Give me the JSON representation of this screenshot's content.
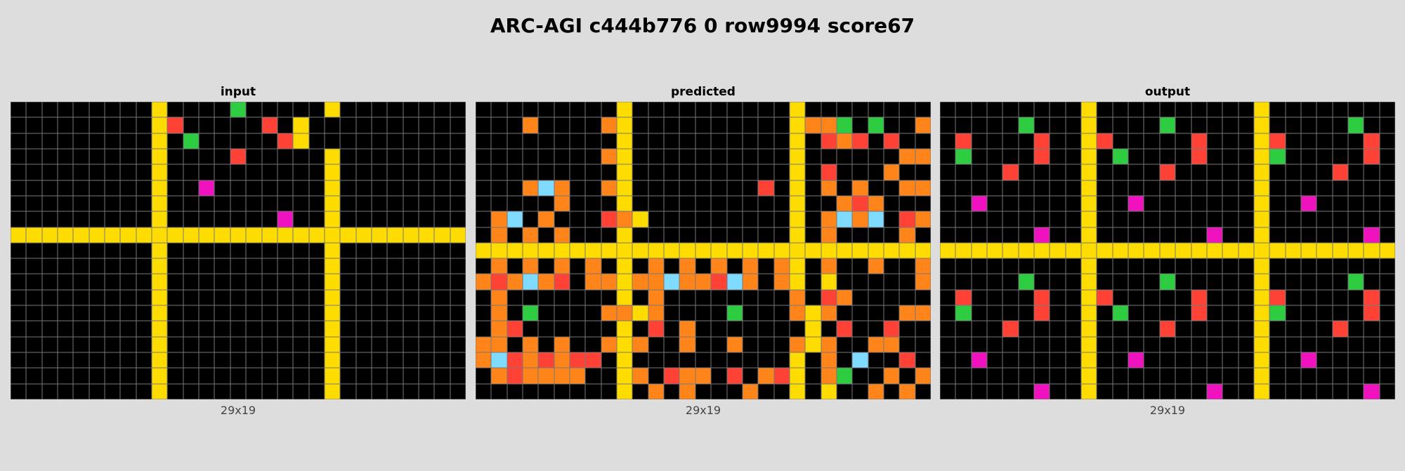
{
  "title": "ARC-AGI c444b776 0 row9994 score67",
  "palette": {
    "0": "#000000",
    "2": "#ff4136",
    "3": "#2ecc40",
    "4": "#ffdc00",
    "6": "#f012be",
    "7": "#ff851b",
    "8": "#7fdbff"
  },
  "panels": [
    {
      "name": "input",
      "label": "input",
      "dims": "29x19",
      "rows": [
        "00000000040000300000400000000",
        "00000000042000002040000000000",
        "00000000040300000240000000000",
        "00000000040000200000400000000",
        "00000000040000000000400000000",
        "00000000040060000000400000000",
        "00000000040000000000400000000",
        "00000000040000000600400000000",
        "44444444444444444444444444444",
        "00000000040000000000400000000",
        "00000000040000000000400000000",
        "00000000040000000000400000000",
        "00000000040000000000400000000",
        "00000000040000000000400000000",
        "00000000040000000000400000000",
        "00000000040000000000400000000",
        "00000000040000000000400000000",
        "00000000040000000000400000000",
        "00000000040000000000400000000"
      ]
    },
    {
      "name": "predicted",
      "label": "predicted",
      "dims": "29x19",
      "rows": [
        "00000000040000000000400000000",
        "00070000740000000000477303007",
        "00000000040000000000402720200",
        "00000000740000000000400000077",
        "00000000040000000000402000700",
        "00078700740000000020407070077",
        "00000700040000000000400727000",
        "07807000274000000000407878027",
        "07070700040000000000407000070",
        "44444444444444444444444444444",
        "07070707040707070707407007007",
        "72787207747787728707404000007",
        "07000000040700000000702700000",
        "07030000774700003000747000077",
        "07200000040207000000040200200",
        "77070700747007007000747007700",
        "78272722040000000000407080020",
        "07277770047027702072407300707",
        "00000000040707000700404007070"
      ]
    },
    {
      "name": "output",
      "label": "output",
      "dims": "29x19",
      "rows": [
        "00000000040000000000400000000",
        "00000300040000300000400000300",
        "02000020042000002000420000020",
        "03000020040300002000430000020",
        "00002000040000200000400002000",
        "00000000040000000000400000000",
        "00600000040060000000400600000",
        "00000000040000000000400000000",
        "00000060040000000600400000060",
        "44444444444444444444444444444",
        "00000000040000000000400000000",
        "00000300040000300000400000300",
        "02000020042000002000420000020",
        "03000020040300002000430000020",
        "00002000040000200000400002000",
        "00000000040000000000400000000",
        "00600000040060000000400600000",
        "00000000040000000000400000000",
        "00000060040000000600400000060"
      ]
    }
  ]
}
